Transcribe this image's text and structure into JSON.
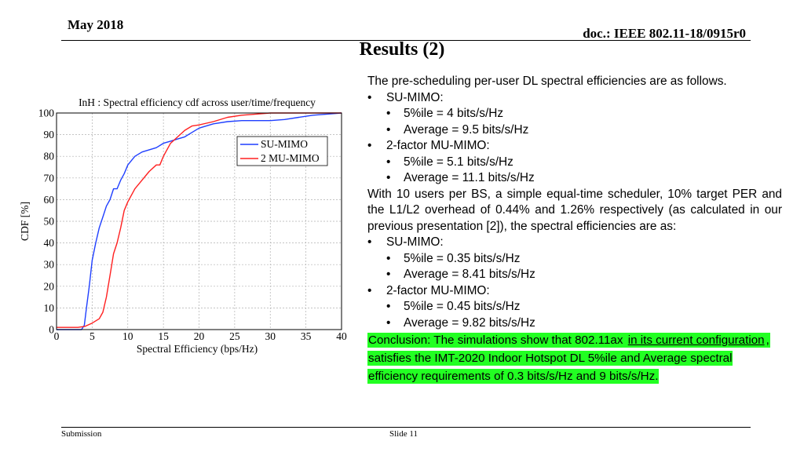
{
  "header": {
    "date": "May 2018",
    "doc_id": "doc.: IEEE 802.11-18/0915r0"
  },
  "title": "Results (2)",
  "footer": {
    "left": "Submission",
    "right": "Slide 11"
  },
  "body": {
    "intro": "The pre-scheduling per-user DL spectral efficiencies are as follows.",
    "su_label_1": "SU-MIMO:",
    "su_pct_1": "5%ile  = 4 bits/s/Hz",
    "su_avg_1": "Average = 9.5 bits/s/Hz",
    "mu_label_1": "2-factor MU-MIMO:",
    "mu_pct_1": "5%ile = 5.1 bits/s/Hz",
    "mu_avg_1": "Average  = 11.1 bits/s/Hz",
    "paragraph": "With 10 users per BS, a simple equal-time scheduler, 10% target PER and the L1/L2 overhead of 0.44% and 1.26% respectively (as calculated in our previous presentation [2]), the spectral efficiencies are as:",
    "su_label_2": "SU-MIMO:",
    "su_pct_2": "5%ile  = 0.35 bits/s/Hz",
    "su_avg_2": "Average = 8.41 bits/s/Hz",
    "mu_label_2": "2-factor MU-MIMO:",
    "mu_pct_2": "5%ile = 0.45 bits/s/Hz",
    "mu_avg_2": "Average  = 9.82 bits/s/Hz",
    "conclusion_a": "Conclusion: The simulations show that 802.11ax ",
    "conclusion_b": "in its current configuration",
    "conclusion_c": ", satisfies the IMT-2020 Indoor Hotspot DL 5%ile and Average spectral efficiency requirements of 0.3 bits/s/Hz and 9 bits/s/Hz."
  },
  "colors": {
    "highlight": "#22ff22",
    "su_line": "#1f3fff",
    "mu_line": "#ff2020"
  },
  "chart_data": {
    "type": "line",
    "title": "InH : Spectral efficiency cdf across user/time/frequency",
    "xlabel": "Spectral Efficiency (bps/Hz)",
    "ylabel": "CDF [%]",
    "xlim": [
      0,
      40
    ],
    "ylim": [
      0,
      100
    ],
    "xticks": [
      0,
      5,
      10,
      15,
      20,
      25,
      30,
      35,
      40
    ],
    "yticks": [
      0,
      10,
      20,
      30,
      40,
      50,
      60,
      70,
      80,
      90,
      100
    ],
    "grid": true,
    "legend_position": "top-right",
    "series": [
      {
        "name": "SU-MIMO",
        "color": "#1f3fff",
        "x": [
          0,
          3.5,
          3.9,
          4.2,
          4.6,
          5.0,
          5.5,
          6.0,
          6.5,
          7.0,
          7.5,
          8.0,
          8.5,
          9.0,
          9.5,
          10.0,
          11.0,
          12.0,
          13.0,
          14.0,
          15.0,
          16.0,
          17.0,
          18.0,
          19.0,
          20.0,
          22.0,
          24.0,
          26.0,
          28.0,
          30.0,
          32.0,
          34.0,
          36.0,
          38.0,
          40.0
        ],
        "y": [
          0,
          0,
          2,
          10,
          20,
          32,
          40,
          47,
          52,
          57,
          60,
          65,
          65,
          69,
          72,
          76,
          80,
          82,
          83,
          84,
          86,
          87,
          88,
          89,
          91,
          93,
          95,
          96,
          96.5,
          96.5,
          96.5,
          97,
          98,
          99,
          99.5,
          100
        ]
      },
      {
        "name": "2 MU-MIMO",
        "color": "#ff2020",
        "x": [
          0,
          3.0,
          4.0,
          5.0,
          6.0,
          6.5,
          7.0,
          7.5,
          8.0,
          8.5,
          9.0,
          9.5,
          10.0,
          11.0,
          12.0,
          13.0,
          14.0,
          14.5,
          15.0,
          16.0,
          17.0,
          18.0,
          19.0,
          20.0,
          22.0,
          24.0,
          26.0,
          28.0,
          30.0,
          35.0,
          40.0
        ],
        "y": [
          1,
          1,
          1.5,
          3,
          5,
          8,
          15,
          25,
          35,
          40,
          47,
          55,
          59,
          65,
          69,
          73,
          76,
          76,
          80,
          86,
          89,
          92,
          94,
          94.5,
          96,
          98,
          99,
          99.5,
          100,
          100,
          100
        ]
      }
    ]
  }
}
